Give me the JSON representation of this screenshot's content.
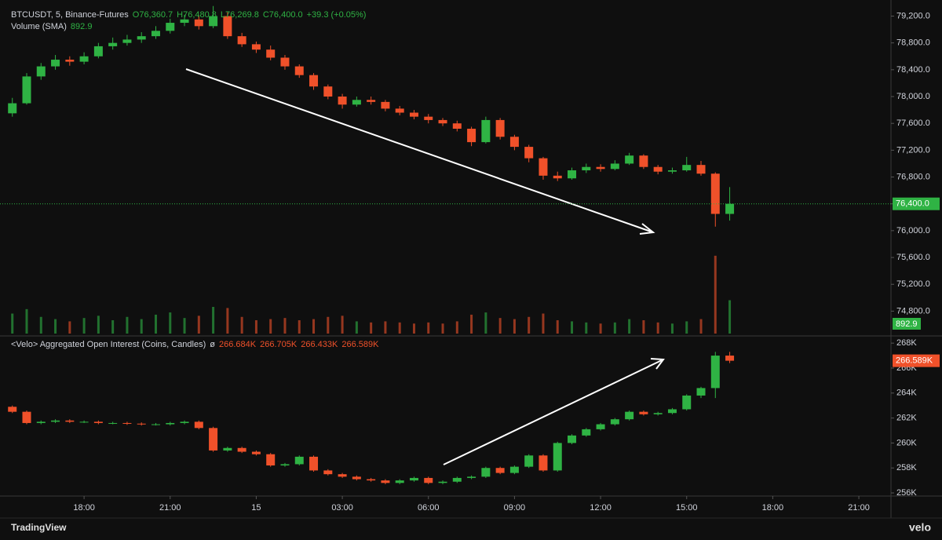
{
  "header": {
    "symbol": "BTCUSDT, 5, Binance-Futures",
    "open": "O76,360.7",
    "high": "H76,480.8",
    "low": "L76,269.8",
    "close": "C76,400.0",
    "change": "+39.3 (+0.05%)",
    "volume_title": "Volume (SMA)",
    "oi_title": "<Velo> Aggregated Open Interest (Coins, Candles)",
    "oi_symbol": "ø",
    "oi_open": "266.684K",
    "oi_high": "266.705K",
    "oi_low": "266.433K"
  },
  "footer": {
    "brand": "TradingView",
    "logo": "velo"
  },
  "chart_data": [
    {
      "type": "candlestick",
      "up_color": "#2fb344",
      "down_color": "#f0512a",
      "xlim": [
        15.07,
        46.12
      ],
      "ylim": [
        74430,
        79440
      ],
      "yticks": [
        {
          "value": 74800,
          "label": "74,800.0"
        },
        {
          "value": 75200,
          "label": "75,200.0"
        },
        {
          "value": 75600,
          "label": "75,600.0"
        },
        {
          "value": 76000,
          "label": "76,000.0"
        },
        {
          "value": 76400,
          "label": "76,400.0"
        },
        {
          "value": 76800,
          "label": "76,800.0"
        },
        {
          "value": 77200,
          "label": "77,200.0"
        },
        {
          "value": 77600,
          "label": "77,600.0"
        },
        {
          "value": 78000,
          "label": "78,000.0"
        },
        {
          "value": 78400,
          "label": "78,400.0"
        },
        {
          "value": 78800,
          "label": "78,800.0"
        },
        {
          "value": 79200,
          "label": "79,200.0"
        }
      ],
      "last_price": {
        "value": 76400,
        "label": "76,400.0"
      },
      "volume_sma": {
        "value": 892.9,
        "label": "892.9"
      },
      "volume_ylim": [
        0,
        30000
      ],
      "x": [
        15.5,
        16,
        16.5,
        17,
        17.5,
        18,
        18.5,
        19,
        19.5,
        20,
        20.5,
        21,
        21.5,
        22,
        22.5,
        23,
        23.5,
        24,
        24.5,
        25,
        25.5,
        26,
        26.5,
        27,
        27.5,
        28,
        28.5,
        29,
        29.5,
        30,
        30.5,
        31,
        31.5,
        32,
        32.5,
        33,
        33.5,
        34,
        34.5,
        35,
        35.5,
        36,
        36.5,
        37,
        37.5,
        38,
        38.5,
        39,
        39.5,
        40,
        40.5
      ],
      "ohlc": [
        [
          77750,
          77980,
          77700,
          77900
        ],
        [
          77900,
          78350,
          77880,
          78300
        ],
        [
          78300,
          78500,
          78250,
          78450
        ],
        [
          78450,
          78620,
          78400,
          78550
        ],
        [
          78550,
          78600,
          78460,
          78520
        ],
        [
          78520,
          78660,
          78480,
          78600
        ],
        [
          78600,
          78800,
          78570,
          78750
        ],
        [
          78750,
          78880,
          78700,
          78800
        ],
        [
          78800,
          78920,
          78760,
          78850
        ],
        [
          78850,
          78960,
          78800,
          78900
        ],
        [
          78900,
          79050,
          78860,
          78980
        ],
        [
          78980,
          79160,
          78940,
          79100
        ],
        [
          79100,
          79220,
          79050,
          79150
        ],
        [
          79150,
          79200,
          79000,
          79050
        ],
        [
          79050,
          79350,
          79020,
          79200
        ],
        [
          79200,
          79260,
          78860,
          78900
        ],
        [
          78900,
          78950,
          78740,
          78780
        ],
        [
          78780,
          78820,
          78650,
          78700
        ],
        [
          78700,
          78760,
          78540,
          78580
        ],
        [
          78580,
          78620,
          78400,
          78450
        ],
        [
          78450,
          78480,
          78280,
          78320
        ],
        [
          78320,
          78350,
          78100,
          78150
        ],
        [
          78150,
          78180,
          77960,
          78000
        ],
        [
          78000,
          78040,
          77820,
          77880
        ],
        [
          77880,
          78000,
          77850,
          77950
        ],
        [
          77950,
          78000,
          77880,
          77920
        ],
        [
          77920,
          77950,
          77780,
          77820
        ],
        [
          77820,
          77860,
          77720,
          77760
        ],
        [
          77760,
          77800,
          77660,
          77700
        ],
        [
          77700,
          77740,
          77600,
          77650
        ],
        [
          77650,
          77680,
          77560,
          77600
        ],
        [
          77600,
          77640,
          77480,
          77520
        ],
        [
          77520,
          77550,
          77260,
          77320
        ],
        [
          77320,
          77700,
          77300,
          77650
        ],
        [
          77650,
          77680,
          77360,
          77400
        ],
        [
          77400,
          77430,
          77200,
          77250
        ],
        [
          77250,
          77280,
          77020,
          77080
        ],
        [
          77080,
          77100,
          76760,
          76820
        ],
        [
          76820,
          76880,
          76740,
          76780
        ],
        [
          76780,
          76940,
          76760,
          76900
        ],
        [
          76900,
          77000,
          76860,
          76950
        ],
        [
          76950,
          76990,
          76880,
          76920
        ],
        [
          76920,
          77050,
          76900,
          77000
        ],
        [
          77000,
          77160,
          76980,
          77120
        ],
        [
          77120,
          77140,
          76920,
          76950
        ],
        [
          76950,
          76980,
          76840,
          76880
        ],
        [
          76880,
          76940,
          76850,
          76900
        ],
        [
          76900,
          77100,
          76880,
          76980
        ],
        [
          76980,
          77040,
          76820,
          76850
        ],
        [
          76850,
          76870,
          76060,
          76250
        ],
        [
          76250,
          76650,
          76150,
          76400
        ]
      ],
      "volume": [
        1800,
        2200,
        1500,
        1300,
        1100,
        1400,
        1600,
        1200,
        1500,
        1300,
        1700,
        1900,
        1400,
        1600,
        2400,
        2300,
        1500,
        1200,
        1300,
        1400,
        1200,
        1300,
        1500,
        1600,
        1100,
        1000,
        1100,
        1000,
        900,
        1000,
        900,
        1100,
        1700,
        1900,
        1400,
        1300,
        1500,
        1800,
        1200,
        1100,
        1000,
        900,
        1000,
        1300,
        1200,
        1000,
        900,
        1100,
        1300,
        7000,
        3000
      ]
    },
    {
      "type": "candlestick",
      "up_color": "#2fb344",
      "down_color": "#f0512a",
      "xlim": [
        15.07,
        46.12
      ],
      "ylim": [
        255.75,
        268.45
      ],
      "yticks": [
        {
          "value": 256,
          "label": "256K"
        },
        {
          "value": 258,
          "label": "258K"
        },
        {
          "value": 260,
          "label": "260K"
        },
        {
          "value": 262,
          "label": "262K"
        },
        {
          "value": 264,
          "label": "264K"
        },
        {
          "value": 266,
          "label": "266K"
        },
        {
          "value": 268,
          "label": "268K"
        }
      ],
      "xticks": [
        {
          "value": 18,
          "label": "18:00"
        },
        {
          "value": 21,
          "label": "21:00"
        },
        {
          "value": 24,
          "label": "15"
        },
        {
          "value": 27,
          "label": "03:00"
        },
        {
          "value": 30,
          "label": "06:00"
        },
        {
          "value": 33,
          "label": "09:00"
        },
        {
          "value": 36,
          "label": "12:00"
        },
        {
          "value": 39,
          "label": "15:00"
        },
        {
          "value": 42,
          "label": "18:00"
        },
        {
          "value": 45,
          "label": "21:00"
        }
      ],
      "last_value": {
        "value": 266.589,
        "label": "266.589K"
      },
      "x": [
        15.5,
        16,
        16.5,
        17,
        17.5,
        18,
        18.5,
        19,
        19.5,
        20,
        20.5,
        21,
        21.5,
        22,
        22.5,
        23,
        23.5,
        24,
        24.5,
        25,
        25.5,
        26,
        26.5,
        27,
        27.5,
        28,
        28.5,
        29,
        29.5,
        30,
        30.5,
        31,
        31.5,
        32,
        32.5,
        33,
        33.5,
        34,
        34.5,
        35,
        35.5,
        36,
        36.5,
        37,
        37.5,
        38,
        38.5,
        39,
        39.5,
        40,
        40.5
      ],
      "ohlc": [
        [
          262.9,
          263.0,
          262.4,
          262.5
        ],
        [
          262.5,
          262.6,
          261.5,
          261.6
        ],
        [
          261.6,
          261.8,
          261.5,
          261.7
        ],
        [
          261.7,
          261.9,
          261.6,
          261.8
        ],
        [
          261.8,
          261.9,
          261.6,
          261.7
        ],
        [
          261.7,
          261.8,
          261.6,
          261.7
        ],
        [
          261.7,
          261.8,
          261.5,
          261.6
        ],
        [
          261.6,
          261.7,
          261.5,
          261.6
        ],
        [
          261.6,
          261.7,
          261.45,
          261.55
        ],
        [
          261.55,
          261.65,
          261.4,
          261.5
        ],
        [
          261.5,
          261.6,
          261.4,
          261.5
        ],
        [
          261.5,
          261.7,
          261.4,
          261.6
        ],
        [
          261.6,
          261.8,
          261.5,
          261.7
        ],
        [
          261.7,
          261.8,
          261.1,
          261.2
        ],
        [
          261.2,
          261.3,
          259.3,
          259.4
        ],
        [
          259.4,
          259.7,
          259.3,
          259.6
        ],
        [
          259.6,
          259.7,
          259.2,
          259.3
        ],
        [
          259.3,
          259.4,
          259.0,
          259.1
        ],
        [
          259.1,
          259.2,
          258.1,
          258.2
        ],
        [
          258.2,
          258.4,
          258.1,
          258.3
        ],
        [
          258.3,
          259.0,
          258.2,
          258.9
        ],
        [
          258.9,
          259.0,
          257.7,
          257.8
        ],
        [
          257.8,
          257.9,
          257.4,
          257.5
        ],
        [
          257.5,
          257.6,
          257.2,
          257.3
        ],
        [
          257.3,
          257.4,
          257.0,
          257.1
        ],
        [
          257.1,
          257.2,
          256.9,
          257.0
        ],
        [
          257.0,
          257.1,
          256.7,
          256.8
        ],
        [
          256.8,
          257.1,
          256.7,
          257.0
        ],
        [
          257.0,
          257.3,
          256.9,
          257.2
        ],
        [
          257.2,
          257.3,
          256.7,
          256.8
        ],
        [
          256.8,
          257.0,
          256.7,
          256.9
        ],
        [
          256.9,
          257.3,
          256.8,
          257.2
        ],
        [
          257.2,
          257.4,
          257.1,
          257.3
        ],
        [
          257.3,
          258.1,
          257.2,
          258.0
        ],
        [
          258.0,
          258.1,
          257.5,
          257.6
        ],
        [
          257.6,
          258.2,
          257.5,
          258.1
        ],
        [
          258.1,
          259.1,
          258.0,
          259.0
        ],
        [
          259.0,
          259.1,
          257.7,
          257.8
        ],
        [
          257.8,
          260.1,
          257.7,
          260.0
        ],
        [
          260.0,
          260.7,
          259.9,
          260.6
        ],
        [
          260.6,
          261.2,
          260.5,
          261.1
        ],
        [
          261.1,
          261.6,
          261.0,
          261.5
        ],
        [
          261.5,
          262.0,
          261.4,
          261.9
        ],
        [
          261.9,
          262.6,
          261.8,
          262.5
        ],
        [
          262.5,
          262.6,
          262.2,
          262.3
        ],
        [
          262.3,
          262.5,
          262.2,
          262.4
        ],
        [
          262.4,
          262.8,
          262.3,
          262.7
        ],
        [
          262.7,
          263.9,
          262.6,
          263.8
        ],
        [
          263.8,
          264.5,
          263.6,
          264.4
        ],
        [
          264.4,
          267.3,
          263.6,
          267.0
        ],
        [
          267.0,
          267.3,
          266.4,
          266.589
        ]
      ]
    }
  ]
}
